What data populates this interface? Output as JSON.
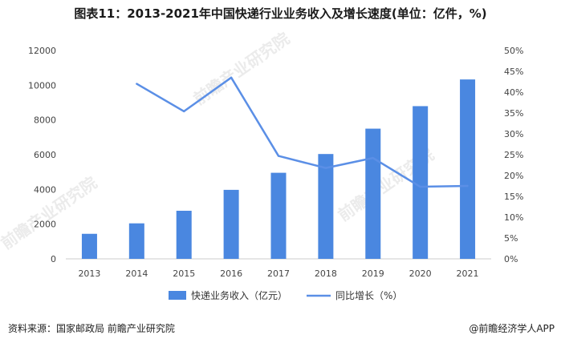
{
  "header": {
    "title": "图表11：2013-2021年中国快递行业业务收入及增长速度(单位：亿件，%)"
  },
  "chart_data": {
    "type": "bar",
    "categories": [
      "2013",
      "2014",
      "2015",
      "2016",
      "2017",
      "2018",
      "2019",
      "2020",
      "2021"
    ],
    "series": [
      {
        "name": "快递业务收入（亿元）",
        "type": "bar",
        "axis": "left",
        "color": "#4a87e0",
        "values": [
          1442,
          2045,
          2770,
          3974,
          4957,
          6038,
          7498,
          8795,
          10332
        ]
      },
      {
        "name": "同比增长（%）",
        "type": "line",
        "axis": "right",
        "color": "#5b8fe6",
        "values": [
          null,
          42.0,
          35.4,
          43.5,
          24.7,
          21.8,
          24.2,
          17.3,
          17.5
        ]
      }
    ],
    "y_left": {
      "ticks": [
        "0",
        "2000",
        "4000",
        "6000",
        "8000",
        "10000",
        "12000"
      ],
      "ylim": [
        0,
        12000
      ]
    },
    "y_right": {
      "ticks": [
        "0%",
        "5%",
        "10%",
        "15%",
        "20%",
        "25%",
        "30%",
        "35%",
        "40%",
        "45%",
        "50%"
      ],
      "ylim": [
        0,
        50
      ]
    },
    "legend_position": "bottom",
    "grid": false
  },
  "footer": {
    "source": "资料来源：国家邮政局 前瞻产业研究院",
    "brand": "@前瞻经济学人APP"
  },
  "watermarks": [
    "前瞻产业研究院",
    "前瞻产业研究院",
    "前瞻产业研究院"
  ]
}
